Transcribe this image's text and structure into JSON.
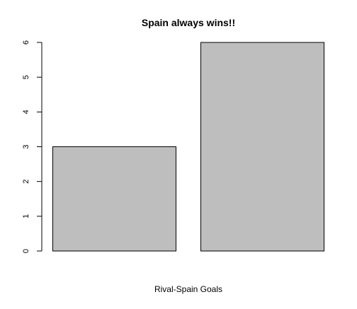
{
  "chart_data": {
    "type": "bar",
    "title": "Spain always wins!!",
    "xlabel": "Rival-Spain Goals",
    "ylabel": "",
    "categories": [
      "",
      ""
    ],
    "values": [
      3,
      6
    ],
    "ylim": [
      0,
      6
    ],
    "yticks": [
      "0",
      "1",
      "2",
      "3",
      "4",
      "5",
      "6"
    ],
    "grid": false,
    "legend": "none",
    "bar_color": "#bebebe",
    "border_color": "#000000"
  }
}
